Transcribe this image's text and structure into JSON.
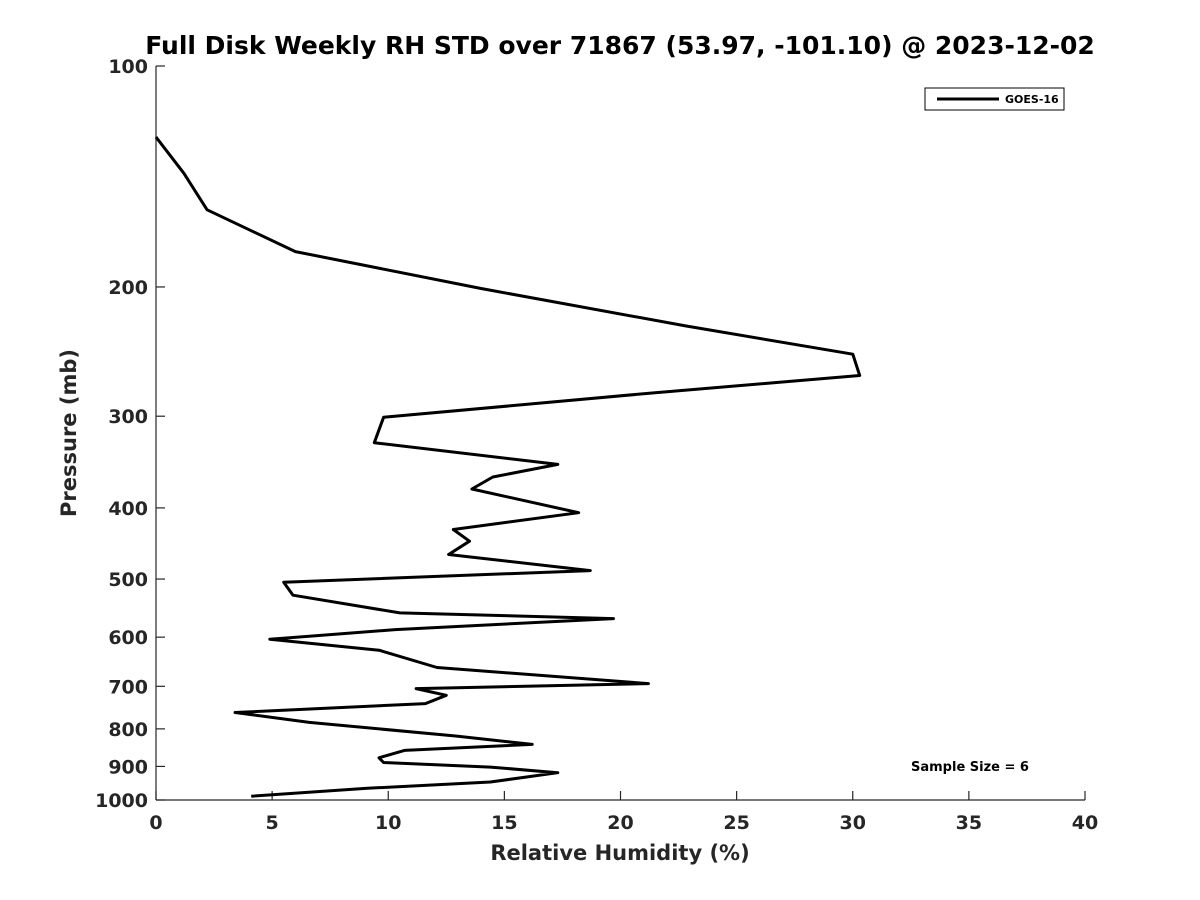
{
  "chart_data": {
    "type": "line",
    "title": "Full Disk Weekly RH STD over 71867 (53.97, -101.10) @ 2023-12-02",
    "xlabel": "Relative Humidity (%)",
    "ylabel": "Pressure (mb)",
    "xlim": [
      0,
      40
    ],
    "ylim": [
      100,
      1000
    ],
    "y_scale": "log",
    "y_reversed": true,
    "grid": false,
    "legend_position": "top-right",
    "xticks": [
      0,
      5,
      10,
      15,
      20,
      25,
      30,
      35,
      40
    ],
    "xtick_labels": [
      "0",
      "5",
      "10",
      "15",
      "20",
      "25",
      "30",
      "35",
      "40"
    ],
    "yticks": [
      100,
      200,
      300,
      400,
      500,
      600,
      700,
      800,
      900,
      1000
    ],
    "ytick_labels": [
      "100",
      "200",
      "300",
      "400",
      "500",
      "600",
      "700",
      "800",
      "900",
      "1000"
    ],
    "annotation": "Sample Size = 6",
    "series": [
      {
        "name": "GOES-16",
        "color": "#000000",
        "points": [
          [
            0.0,
            125
          ],
          [
            1.2,
            140
          ],
          [
            2.2,
            157
          ],
          [
            6.0,
            179
          ],
          [
            14.0,
            201
          ],
          [
            22.8,
            226
          ],
          [
            30.0,
            247
          ],
          [
            30.3,
            264
          ],
          [
            21.3,
            279
          ],
          [
            9.8,
            301
          ],
          [
            9.4,
            326
          ],
          [
            17.3,
            349
          ],
          [
            14.5,
            363
          ],
          [
            13.6,
            377
          ],
          [
            18.2,
            406
          ],
          [
            12.8,
            428
          ],
          [
            13.5,
            444
          ],
          [
            12.6,
            463
          ],
          [
            18.7,
            487
          ],
          [
            5.5,
            505
          ],
          [
            5.9,
            526
          ],
          [
            10.5,
            556
          ],
          [
            19.7,
            566
          ],
          [
            10.3,
            586
          ],
          [
            4.9,
            604
          ],
          [
            9.6,
            625
          ],
          [
            12.1,
            660
          ],
          [
            21.2,
            694
          ],
          [
            11.2,
            705
          ],
          [
            12.5,
            720
          ],
          [
            11.6,
            739
          ],
          [
            3.4,
            760
          ],
          [
            6.6,
            784
          ],
          [
            12.9,
            818
          ],
          [
            16.2,
            840
          ],
          [
            10.7,
            856
          ],
          [
            9.6,
            876
          ],
          [
            9.8,
            889
          ],
          [
            14.4,
            902
          ],
          [
            17.3,
            918
          ],
          [
            14.4,
            945
          ],
          [
            9.1,
            964
          ],
          [
            4.1,
            988
          ]
        ]
      }
    ]
  }
}
